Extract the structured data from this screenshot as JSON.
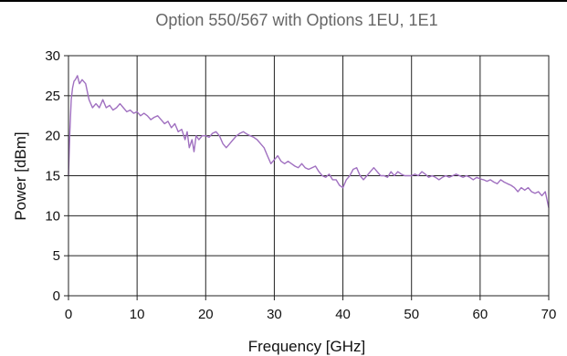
{
  "chart_data": {
    "type": "line",
    "title": "Option 550/567 with Options 1EU, 1E1",
    "xlabel": "Frequency [GHz]",
    "ylabel": "Power [dBm]",
    "xlim": [
      0,
      70
    ],
    "ylim": [
      0,
      30
    ],
    "x_ticks": [
      0,
      10,
      20,
      30,
      40,
      50,
      60,
      70
    ],
    "y_ticks": [
      0,
      5,
      10,
      15,
      20,
      25,
      30
    ],
    "grid": true,
    "line_color": "#a070c0",
    "series": [
      {
        "x": [
          0,
          0.2,
          0.4,
          0.6,
          0.8,
          1.0,
          1.3,
          1.6,
          2.0,
          2.5,
          3.0,
          3.5,
          4.0,
          4.5,
          5.0,
          5.5,
          6.0,
          6.5,
          7.0,
          7.5,
          8.0,
          8.5,
          9.0,
          9.5,
          10.0,
          10.5,
          11.0,
          11.5,
          12.0,
          12.5,
          13.0,
          13.5,
          14.0,
          14.5,
          15.0,
          15.5,
          16.0,
          16.5,
          17.0,
          17.3,
          17.6,
          18.0,
          18.3,
          18.6,
          19.0,
          19.5,
          20.0,
          20.5,
          21.0,
          21.5,
          22.0,
          22.5,
          23.0,
          23.5,
          24.0,
          24.5,
          25.0,
          25.5,
          26.0,
          26.5,
          27.0,
          27.5,
          28.0,
          28.5,
          29.0,
          29.5,
          30.0,
          30.5,
          31.0,
          31.5,
          32.0,
          32.5,
          33.0,
          33.5,
          34.0,
          34.5,
          35.0,
          35.5,
          36.0,
          36.5,
          37.0,
          37.5,
          38.0,
          38.5,
          39.0,
          39.5,
          40.0,
          40.5,
          41.0,
          41.5,
          42.0,
          42.5,
          43.0,
          43.5,
          44.0,
          44.5,
          45.0,
          45.5,
          46.0,
          46.5,
          47.0,
          47.5,
          48.0,
          48.5,
          49.0,
          49.5,
          50.0,
          50.5,
          51.0,
          51.5,
          52.0,
          52.5,
          53.0,
          53.5,
          54.0,
          54.5,
          55.0,
          55.5,
          56.0,
          56.5,
          57.0,
          57.5,
          58.0,
          58.5,
          59.0,
          59.5,
          60.0,
          60.5,
          61.0,
          61.5,
          62.0,
          62.5,
          63.0,
          63.5,
          64.0,
          64.5,
          65.0,
          65.5,
          66.0,
          66.5,
          67.0,
          67.5,
          68.0,
          68.5,
          69.0,
          69.5,
          70.0
        ],
        "y": [
          15.0,
          20.5,
          24.5,
          26.0,
          26.8,
          27.0,
          27.5,
          26.5,
          27.0,
          26.5,
          24.5,
          23.5,
          24.0,
          23.5,
          24.5,
          23.5,
          23.8,
          23.2,
          23.5,
          24.0,
          23.5,
          23.0,
          23.2,
          22.8,
          23.0,
          22.5,
          22.8,
          22.5,
          22.0,
          22.3,
          22.5,
          22.0,
          21.5,
          21.8,
          21.0,
          21.5,
          20.5,
          20.8,
          19.5,
          20.5,
          18.5,
          19.5,
          18.0,
          20.0,
          19.5,
          20.0,
          20.0,
          19.8,
          20.3,
          20.5,
          20.0,
          19.0,
          18.5,
          19.0,
          19.5,
          20.0,
          20.3,
          20.5,
          20.2,
          20.0,
          19.8,
          19.5,
          19.0,
          18.5,
          17.5,
          16.5,
          17.0,
          17.5,
          16.8,
          16.5,
          16.8,
          16.5,
          16.2,
          16.0,
          16.5,
          16.0,
          15.8,
          16.0,
          16.2,
          15.5,
          15.0,
          14.8,
          15.2,
          14.5,
          14.5,
          13.8,
          13.5,
          14.5,
          15.0,
          15.8,
          16.0,
          15.0,
          14.5,
          15.0,
          15.5,
          16.0,
          15.5,
          15.0,
          15.0,
          14.8,
          15.5,
          15.0,
          15.5,
          15.2,
          15.0,
          15.0,
          15.0,
          15.2,
          15.0,
          15.5,
          15.2,
          14.8,
          15.0,
          14.8,
          14.5,
          14.8,
          15.0,
          14.8,
          15.0,
          15.2,
          15.0,
          14.8,
          15.0,
          14.8,
          14.5,
          14.8,
          14.6,
          14.5,
          14.3,
          14.5,
          14.2,
          14.0,
          14.5,
          14.2,
          14.0,
          13.8,
          13.5,
          13.0,
          13.5,
          13.2,
          13.5,
          13.0,
          12.8,
          13.0,
          12.5,
          13.0,
          11.0
        ]
      }
    ]
  }
}
